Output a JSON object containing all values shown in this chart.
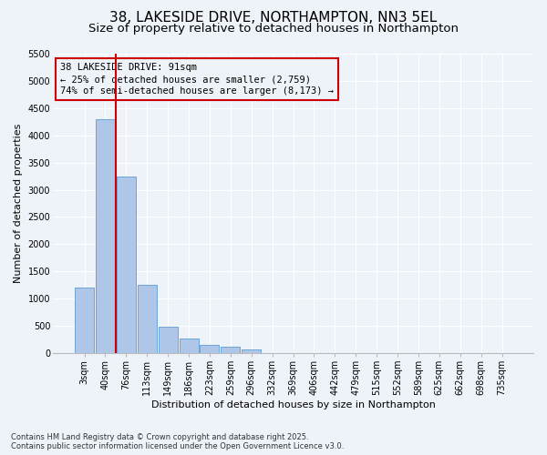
{
  "title_line1": "38, LAKESIDE DRIVE, NORTHAMPTON, NN3 5EL",
  "title_line2": "Size of property relative to detached houses in Northampton",
  "xlabel": "Distribution of detached houses by size in Northampton",
  "ylabel": "Number of detached properties",
  "categories": [
    "3sqm",
    "40sqm",
    "76sqm",
    "113sqm",
    "149sqm",
    "186sqm",
    "223sqm",
    "259sqm",
    "296sqm",
    "332sqm",
    "369sqm",
    "406sqm",
    "442sqm",
    "479sqm",
    "515sqm",
    "552sqm",
    "589sqm",
    "625sqm",
    "662sqm",
    "698sqm",
    "735sqm"
  ],
  "bar_values": [
    1200,
    4300,
    3250,
    1250,
    490,
    270,
    150,
    110,
    70,
    0,
    0,
    0,
    0,
    0,
    0,
    0,
    0,
    0,
    0,
    0,
    0
  ],
  "bar_color": "#aec6e8",
  "bar_edge_color": "#5b9bd5",
  "vline_color": "#cc0000",
  "annotation_text": "38 LAKESIDE DRIVE: 91sqm\n← 25% of detached houses are smaller (2,759)\n74% of semi-detached houses are larger (8,173) →",
  "annotation_box_color": "#cc0000",
  "ylim": [
    0,
    5500
  ],
  "yticks": [
    0,
    500,
    1000,
    1500,
    2000,
    2500,
    3000,
    3500,
    4000,
    4500,
    5000,
    5500
  ],
  "background_color": "#eef2f9",
  "grid_color": "#ffffff",
  "footnote": "Contains HM Land Registry data © Crown copyright and database right 2025.\nContains public sector information licensed under the Open Government Licence v3.0.",
  "title_fontsize": 11,
  "subtitle_fontsize": 9.5,
  "axis_label_fontsize": 8,
  "tick_fontsize": 7,
  "annotation_fontsize": 7.5
}
